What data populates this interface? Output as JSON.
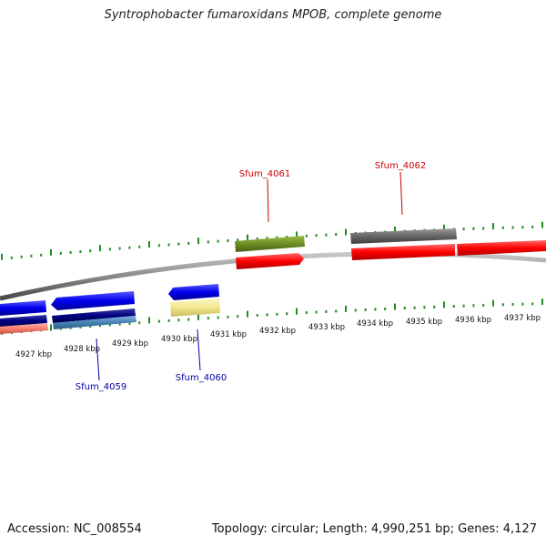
{
  "title": "Syntrophobacter fumaroxidans MPOB, complete genome",
  "footer": {
    "accession": "Accession: NC_008554",
    "summary": "Topology: circular; Length: 4,990,251 bp; Genes: 4,127"
  },
  "colors": {
    "forward_cds": "#ff0000",
    "reverse_cds": "#0000ee",
    "olive_feature": "#6b8e23",
    "gray_feature": "#666666",
    "navy_feature": "#000080",
    "steelblue_feature": "#4682b4",
    "khaki_feature": "#f0e68c",
    "salmon_feature": "#fa8072",
    "tick": "#228b22",
    "label_forward": "#cc0000",
    "label_reverse": "#0000aa"
  },
  "scale": {
    "unit": "kbp",
    "labels": [
      "4927 kbp",
      "4928 kbp",
      "4929 kbp",
      "4930 kbp",
      "4931 kbp",
      "4932 kbp",
      "4933 kbp",
      "4934 kbp",
      "4935 kbp",
      "4936 kbp",
      "4937 kbp"
    ]
  },
  "genes": [
    {
      "name": "Sfum_4059",
      "strand": "reverse"
    },
    {
      "name": "Sfum_4060",
      "strand": "reverse"
    },
    {
      "name": "Sfum_4061",
      "strand": "forward"
    },
    {
      "name": "Sfum_4062",
      "strand": "forward"
    }
  ]
}
